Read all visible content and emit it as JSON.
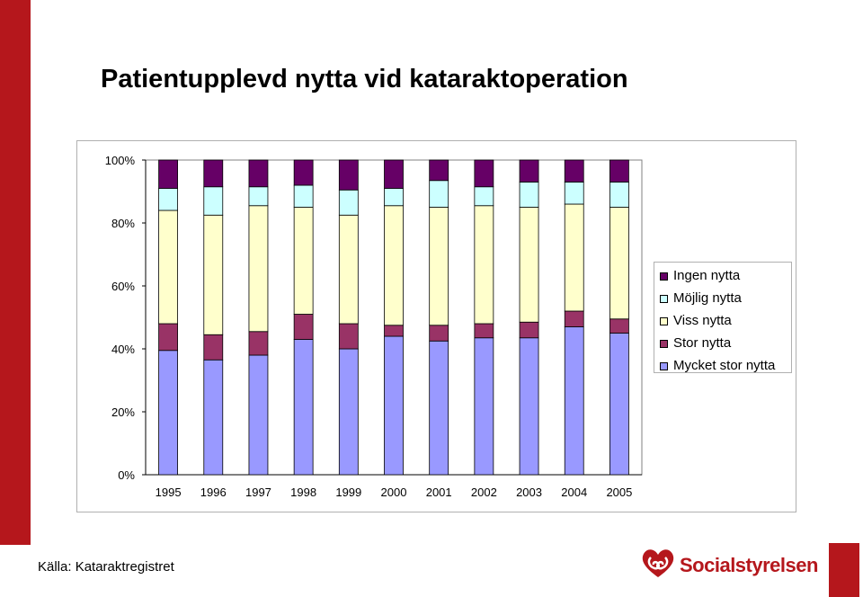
{
  "title": "Patientupplevd nytta vid kataraktoperation",
  "source": "Källa: Kataraktregistret",
  "logo": {
    "text": "Socialstyrelsen",
    "color": "#b5171c"
  },
  "colors": {
    "accent": "#b5171c"
  },
  "chart_data": {
    "type": "bar",
    "stacked": true,
    "percent": true,
    "categories": [
      "1995",
      "1996",
      "1997",
      "1998",
      "1999",
      "2000",
      "2001",
      "2002",
      "2003",
      "2004",
      "2005"
    ],
    "series": [
      {
        "name": "Mycket stor nytta",
        "color": "#9999ff",
        "values": [
          39.5,
          36.5,
          38,
          43,
          40,
          44,
          42.5,
          43.5,
          43.5,
          47,
          45
        ]
      },
      {
        "name": "Stor nytta",
        "color": "#993366",
        "values": [
          8.5,
          8,
          7.5,
          8,
          8,
          3.5,
          5,
          4.5,
          5,
          5,
          4.5
        ]
      },
      {
        "name": "Viss nytta",
        "color": "#ffffcc",
        "values": [
          36,
          38,
          40,
          34,
          34.5,
          38,
          37.5,
          37.5,
          36.5,
          34,
          35.5
        ]
      },
      {
        "name": "Möjlig nytta",
        "color": "#ccffff",
        "values": [
          7,
          9,
          6,
          7,
          8,
          5.5,
          8.5,
          6,
          8,
          7,
          8
        ]
      },
      {
        "name": "Ingen nytta",
        "color": "#660066",
        "values": [
          9,
          8.5,
          8.5,
          8,
          9.5,
          9,
          6.5,
          8.5,
          7,
          7,
          7
        ]
      }
    ],
    "y_ticks": [
      "0%",
      "20%",
      "40%",
      "60%",
      "80%",
      "100%"
    ],
    "ylim": [
      0,
      100
    ],
    "legend_position": "right",
    "legend_order": [
      "Ingen nytta",
      "Möjlig nytta",
      "Viss nytta",
      "Stor nytta",
      "Mycket stor nytta"
    ]
  }
}
